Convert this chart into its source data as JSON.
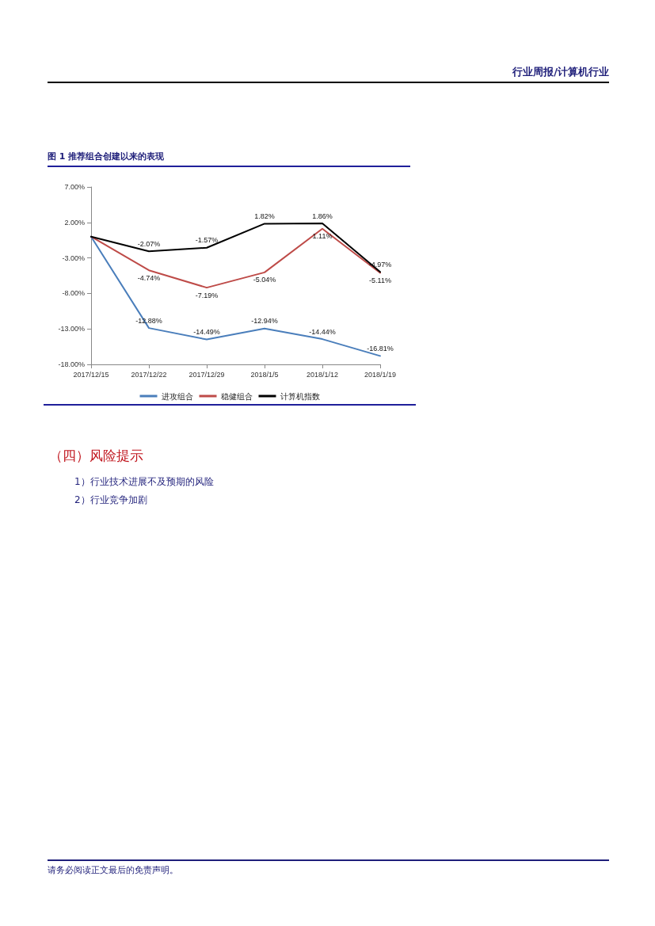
{
  "chart_data": {
    "type": "line",
    "title": "图 1  推荐组合创建以来的表现",
    "categories": [
      "2017/12/15",
      "2017/12/22",
      "2017/12/29",
      "2018/1/5",
      "2018/1/12",
      "2018/1/19"
    ],
    "series": [
      {
        "name": "进攻组合",
        "color": "#4a7ebb",
        "values": [
          0,
          -12.88,
          -14.49,
          -12.94,
          -14.44,
          -16.81
        ],
        "value_labels": [
          null,
          "-12.88%",
          "-14.49%",
          "-12.94%",
          "-14.44%",
          "-16.81%"
        ]
      },
      {
        "name": "稳健组合",
        "color": "#be4b48",
        "values": [
          0,
          -4.74,
          -7.19,
          -5.04,
          1.11,
          -5.11
        ],
        "value_labels": [
          null,
          "-4.74%",
          "-7.19%",
          "-5.04%",
          "1.11%",
          "-5.11%"
        ]
      },
      {
        "name": "计算机指数",
        "color": "#000000",
        "values": [
          0,
          -2.07,
          -1.57,
          1.82,
          1.86,
          -4.97
        ],
        "value_labels": [
          null,
          "-2.07%",
          "-1.57%",
          "1.82%",
          "1.86%",
          "-4.97%"
        ]
      }
    ],
    "ylim": [
      -18,
      7
    ],
    "yticks": [
      {
        "value": -18,
        "label": "-18.00%"
      },
      {
        "value": -13,
        "label": "-13.00%"
      },
      {
        "value": -8,
        "label": "-8.00%"
      },
      {
        "value": -3,
        "label": "-3.00%"
      },
      {
        "value": 2,
        "label": "2.00%"
      },
      {
        "value": 7,
        "label": "7.00%"
      }
    ],
    "grid": false,
    "legend": "bottom",
    "marker": "none",
    "line_style": "solid",
    "annotations": [
      "行业周报/计算机行业",
      "（四）风险提示",
      "1）行业技术进展不及预期的风险",
      "2）行业竞争加剧",
      "请务必阅读正文最后的免责声明。"
    ]
  }
}
